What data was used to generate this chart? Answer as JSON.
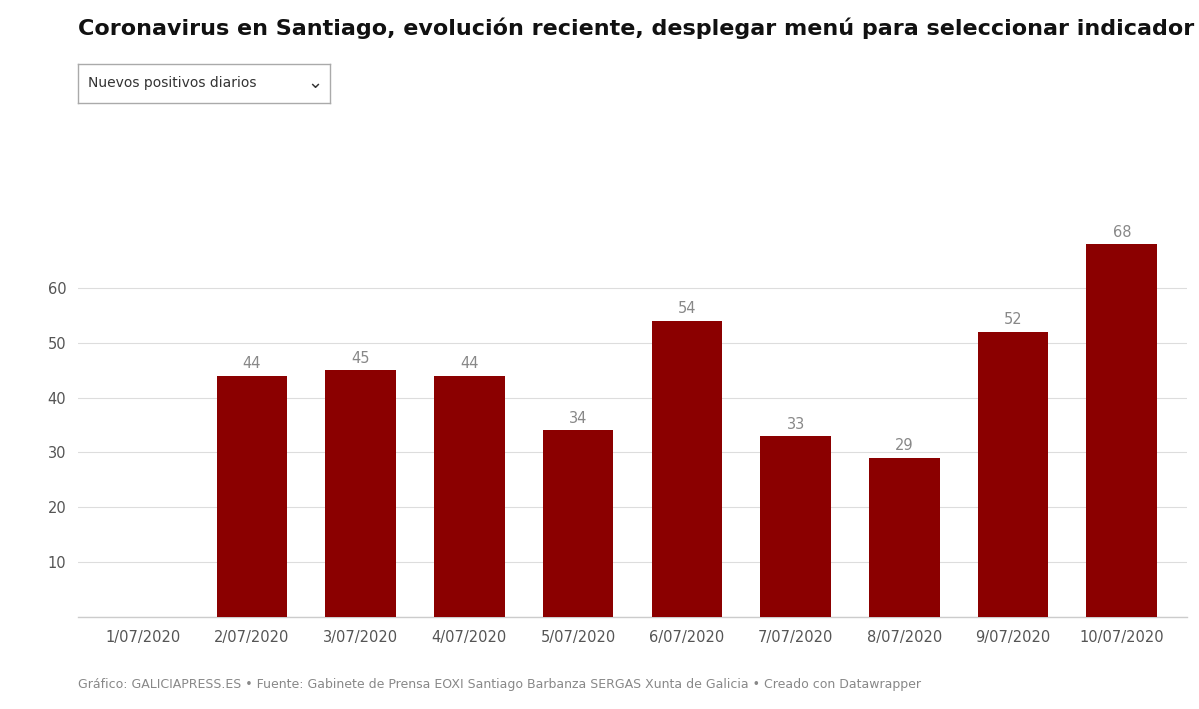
{
  "title": "Coronavirus en Santiago, evolución reciente, desplegar menú para seleccionar indicador",
  "dropdown_label": "Nuevos positivos diarios",
  "categories": [
    "1/07/2020",
    "2/07/2020",
    "3/07/2020",
    "4/07/2020",
    "5/07/2020",
    "6/07/2020",
    "7/07/2020",
    "8/07/2020",
    "9/07/2020",
    "10/07/2020"
  ],
  "values": [
    0,
    44,
    45,
    44,
    34,
    54,
    33,
    29,
    52,
    68
  ],
  "bar_color": "#8B0000",
  "label_color": "#888888",
  "background_color": "#ffffff",
  "yticks": [
    0,
    10,
    20,
    30,
    40,
    50,
    60
  ],
  "ylim": [
    0,
    75
  ],
  "title_fontsize": 16,
  "axis_fontsize": 10.5,
  "label_fontsize": 10.5,
  "footer": "Gráfico: GALICIAPRESS.ES • Fuente: Gabinete de Prensa EOXI Santiago Barbanza SERGAS Xunta de Galicia • Creado con Datawrapper",
  "footer_fontsize": 9,
  "grid_color": "#dddddd",
  "spine_color": "#cccccc"
}
